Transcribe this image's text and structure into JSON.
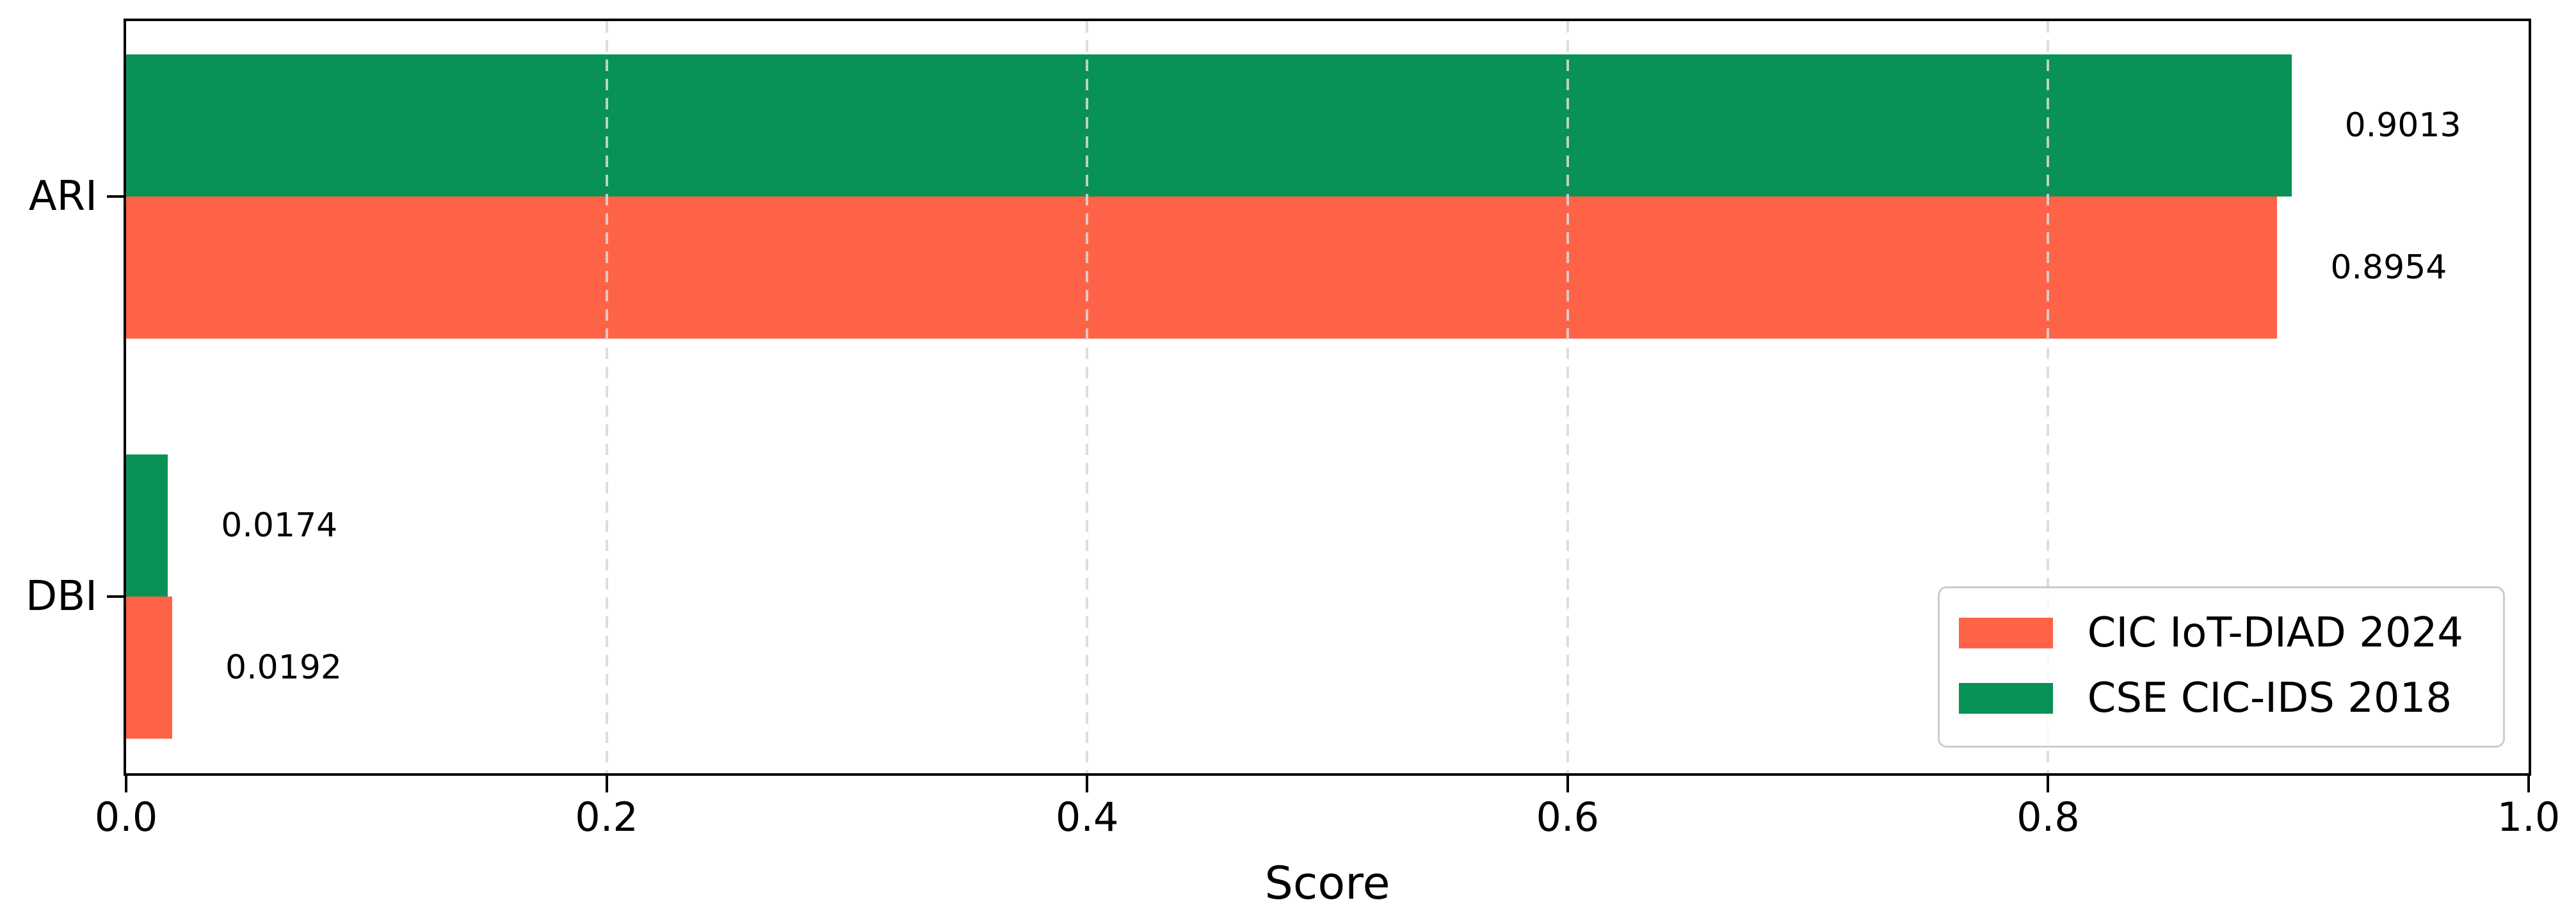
{
  "chart_data": {
    "type": "bar",
    "orientation": "horizontal",
    "title": "",
    "xlabel": "Score",
    "ylabel": "",
    "xlim": [
      0.0,
      1.0
    ],
    "xticks": [
      0.0,
      0.2,
      0.4,
      0.6,
      0.8,
      1.0
    ],
    "xtick_labels": [
      "0.0",
      "0.2",
      "0.4",
      "0.6",
      "0.8",
      "1.0"
    ],
    "categories": [
      "ARI",
      "DBI"
    ],
    "series": [
      {
        "name": "CIC IoT-DIAD 2024",
        "color": "#FF6347",
        "values": [
          0.8954,
          0.0192
        ],
        "labels": [
          "0.8954",
          "0.0192"
        ]
      },
      {
        "name": "CSE CIC-IDS 2018",
        "color": "#089256",
        "values": [
          0.9013,
          0.0174
        ],
        "labels": [
          "0.9013",
          "0.0174"
        ]
      }
    ],
    "grid": "vertical-dashed",
    "legend_position": "lower right"
  },
  "colors": {
    "spine": "#000000",
    "grid": "#d8d8d8",
    "background": "#ffffff",
    "text": "#000000"
  }
}
